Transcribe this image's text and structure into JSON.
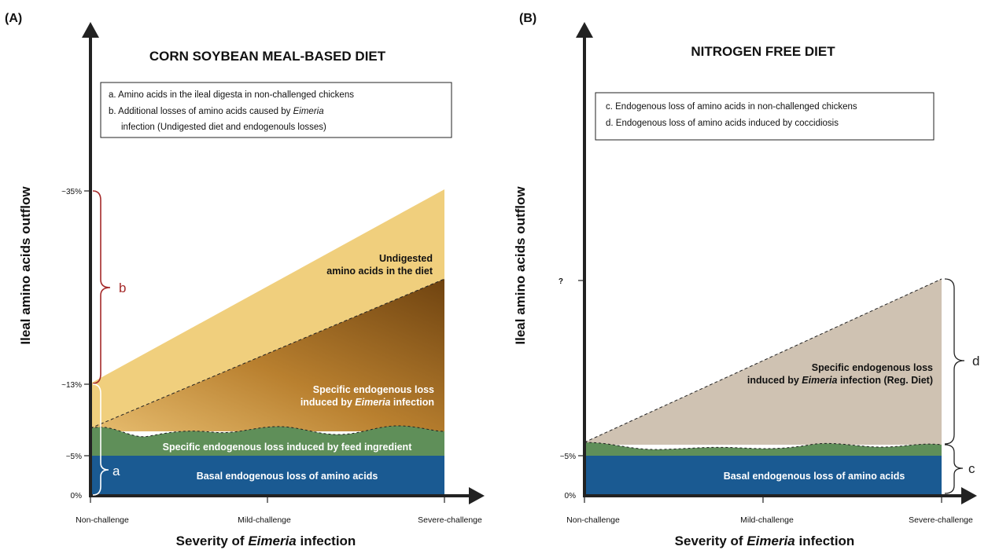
{
  "panel_a": {
    "panel_label": "(A)",
    "title": "CORN SOYBEAN MEAL-BASED DIET",
    "y_axis_label": "Ileal amino acids outflow",
    "x_axis_label_prefix": "Severity of ",
    "x_axis_label_italic": "Eimeria",
    "x_axis_label_suffix": " infection",
    "y_ticks": [
      "~35%",
      "~13%",
      "~5%",
      "0%"
    ],
    "x_ticks": [
      "Non-challenge",
      "Mild-challenge",
      "Severe-challenge"
    ],
    "legend": {
      "line1": "a.  Amino acids in the ileal digesta in non-challenged chickens",
      "line2_prefix": "b. Additional losses of amino acids caused by ",
      "line2_italic": "Eimeria",
      "line3": "infection (Undigested diet and endogenouls losses)"
    },
    "regions": {
      "undigested_line1": "Undigested",
      "undigested_line2": "amino acids in the diet",
      "specific_line1": "Specific endogenous loss",
      "specific_line2_prefix": "induced by ",
      "specific_line2_italic": "Eimeria",
      "specific_line2_suffix": " infection",
      "feed": "Specific endogenous loss induced by feed ingredient",
      "basal": "Basal endogenous loss of amino acids"
    },
    "braces": {
      "upper": "b",
      "lower": "a"
    },
    "colors": {
      "upper_brace": "#a52a2a",
      "lower_brace": "#ffffff"
    }
  },
  "panel_b": {
    "panel_label": "(B)",
    "title": "NITROGEN FREE DIET",
    "y_axis_label": "Ileal amino acids outflow",
    "x_axis_label_prefix": "Severity of ",
    "x_axis_label_italic": "Eimeria",
    "x_axis_label_suffix": " infection",
    "y_ticks": [
      "?",
      "~5%",
      "0%"
    ],
    "x_ticks": [
      "Non-challenge",
      "Mild-challenge",
      "Severe-challenge"
    ],
    "legend": {
      "line1": "c. Endogenous loss of amino acids in non-challenged chickens",
      "line2": "d. Endogenous loss of amino acids induced by coccidiosis"
    },
    "regions": {
      "specific_line1": "Specific endogenous loss",
      "specific_line2_prefix": "induced by ",
      "specific_line2_italic": "Eimeria",
      "specific_line2_suffix": " infection (Reg. Diet)",
      "basal": "Basal endogenous loss of amino acids"
    },
    "braces": {
      "upper": "d",
      "lower": "c"
    }
  },
  "colors": {
    "basal_blue": "#1a5a92",
    "feed_green": "#5f8f59",
    "undigested_yellow": "#f0cf7d",
    "eimeria_brown_light": "#d9a858",
    "eimeria_brown_dark": "#6f4310",
    "nfd_taupe": "#cfc2b2",
    "axis": "#222222"
  }
}
